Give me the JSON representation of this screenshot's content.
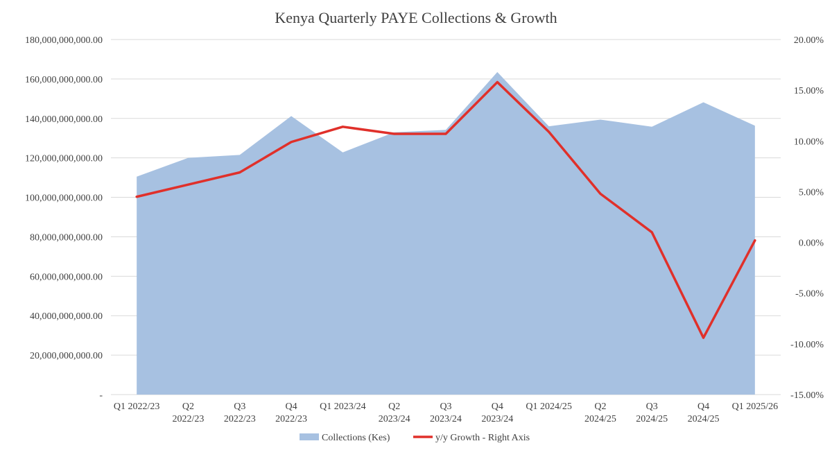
{
  "chart_data": {
    "type": "area",
    "title": "Kenya Quarterly PAYE Collections & Growth",
    "categories": [
      [
        "Q1 2022/23"
      ],
      [
        "Q2",
        "2022/23"
      ],
      [
        "Q3",
        "2022/23"
      ],
      [
        "Q4",
        "2022/23"
      ],
      [
        "Q1 2023/24"
      ],
      [
        "Q2",
        "2023/24"
      ],
      [
        "Q3",
        "2023/24"
      ],
      [
        "Q4",
        "2023/24"
      ],
      [
        "Q1 2024/25"
      ],
      [
        "Q2",
        "2024/25"
      ],
      [
        "Q3",
        "2024/25"
      ],
      [
        "Q4",
        "2024/25"
      ],
      [
        "Q1 2025/26"
      ]
    ],
    "series": [
      {
        "name": "Collections (Kes)",
        "type": "area",
        "axis": "left",
        "color": "#a7c1e1",
        "values": [
          110500000000,
          120000000000,
          121500000000,
          141200000000,
          122800000000,
          133000000000,
          134200000000,
          163500000000,
          136000000000,
          139400000000,
          135800000000,
          148200000000,
          136300000000
        ]
      },
      {
        "name": "y/y Growth - Right Axis",
        "type": "line",
        "axis": "right",
        "color": "#e0302a",
        "values": [
          4.5,
          5.7,
          6.9,
          9.9,
          11.4,
          10.7,
          10.7,
          15.8,
          10.9,
          4.8,
          1.0,
          -9.4,
          0.2
        ]
      }
    ],
    "y_left": {
      "ylim": [
        0,
        180000000000
      ],
      "ticks": [
        0,
        20000000000,
        40000000000,
        60000000000,
        80000000000,
        100000000000,
        120000000000,
        140000000000,
        160000000000,
        180000000000
      ],
      "tick_labels": [
        "-",
        "20,000,000,000.00",
        "40,000,000,000.00",
        "60,000,000,000.00",
        "80,000,000,000.00",
        "100,000,000,000.00",
        "120,000,000,000.00",
        "140,000,000,000.00",
        "160,000,000,000.00",
        "180,000,000,000.00"
      ]
    },
    "y_right": {
      "ylim": [
        -15,
        20
      ],
      "ticks": [
        -15,
        -10,
        -5,
        0,
        5,
        10,
        15,
        20
      ],
      "tick_labels": [
        "-15.00%",
        "-10.00%",
        "-5.00%",
        "0.00%",
        "5.00%",
        "10.00%",
        "15.00%",
        "20.00%"
      ]
    },
    "grid": true,
    "legend": {
      "position": "bottom",
      "entries": [
        "Collections (Kes)",
        "y/y Growth - Right Axis"
      ]
    },
    "xlabel": "",
    "ylabel": ""
  }
}
